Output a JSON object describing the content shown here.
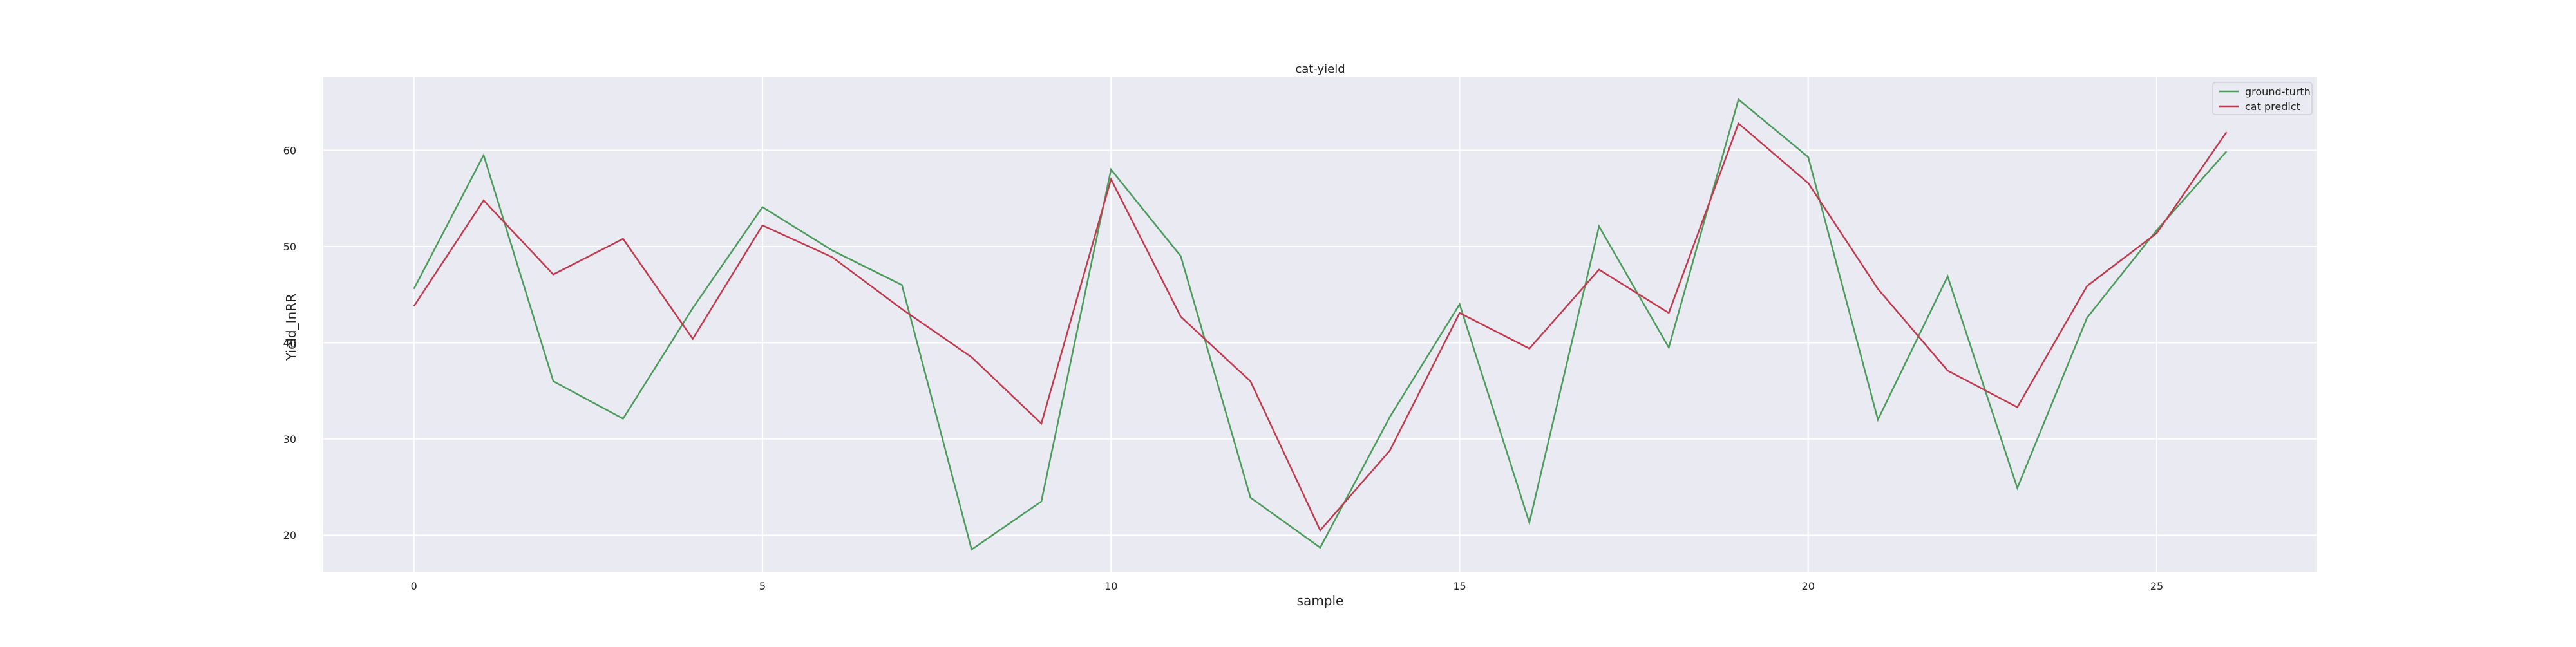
{
  "chart_data": {
    "type": "line",
    "title": "cat-yield",
    "xlabel": "sample",
    "ylabel": "Yield_InRR",
    "xlim": [
      -1.3,
      27.3
    ],
    "ylim": [
      16.2,
      67.6
    ],
    "x_ticks": [
      0,
      5,
      10,
      15,
      20,
      25
    ],
    "y_ticks": [
      20,
      30,
      40,
      50,
      60
    ],
    "grid": true,
    "legend_position": "top-right",
    "x": [
      0,
      1,
      2,
      3,
      4,
      5,
      6,
      7,
      8,
      9,
      10,
      11,
      12,
      13,
      14,
      15,
      16,
      17,
      18,
      19,
      20,
      21,
      22,
      23,
      24,
      25,
      26
    ],
    "series": [
      {
        "name": "ground-turth",
        "color": "#4c9a5c",
        "values": [
          45.6,
          59.5,
          36.0,
          32.1,
          43.6,
          54.1,
          49.6,
          46.0,
          18.5,
          23.5,
          58.0,
          49.0,
          23.9,
          18.7,
          32.3,
          44.0,
          21.3,
          52.1,
          39.5,
          65.3,
          59.3,
          32.0,
          46.9,
          24.9,
          42.6,
          51.7,
          59.9
        ]
      },
      {
        "name": "cat predict",
        "color": "#c03a4e",
        "values": [
          43.8,
          54.8,
          47.1,
          50.8,
          40.4,
          52.2,
          48.9,
          43.5,
          38.5,
          31.6,
          57.0,
          42.7,
          36.0,
          20.5,
          28.8,
          43.1,
          39.4,
          47.6,
          43.1,
          62.8,
          56.6,
          45.6,
          37.1,
          33.3,
          45.9,
          51.4,
          61.9
        ]
      }
    ]
  },
  "colors": {
    "plot_background": "#eaeaf2",
    "gridline": "#ffffff"
  }
}
